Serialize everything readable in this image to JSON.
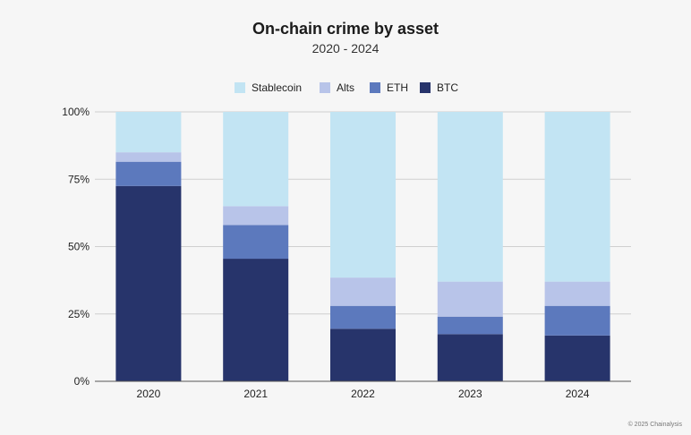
{
  "chart_data": {
    "type": "bar",
    "stacked": true,
    "title": "On-chain crime by asset",
    "subtitle": "2020 - 2024",
    "categories": [
      "2020",
      "2021",
      "2022",
      "2023",
      "2024"
    ],
    "series": [
      {
        "name": "BTC",
        "color": "#27346b",
        "values": [
          72.5,
          45.5,
          19.5,
          17.5,
          17
        ]
      },
      {
        "name": "ETH",
        "color": "#5c79bd",
        "values": [
          9,
          12.5,
          8.5,
          6.5,
          11
        ]
      },
      {
        "name": "Alts",
        "color": "#b8c4e9",
        "values": [
          3.5,
          7,
          10.5,
          13,
          9
        ]
      },
      {
        "name": "Stablecoin",
        "color": "#c2e4f3",
        "values": [
          15,
          35,
          61.5,
          63,
          63
        ]
      }
    ],
    "legend_order": [
      "Stablecoin",
      "Alts",
      "ETH",
      "BTC"
    ],
    "legend_position": "top-center",
    "ylim": [
      0,
      100
    ],
    "yticks": [
      0,
      25,
      50,
      75,
      100
    ],
    "ytick_labels": [
      "0%",
      "25%",
      "50%",
      "75%",
      "100%"
    ],
    "grid": true,
    "xlabel": "",
    "ylabel": ""
  },
  "footer": "© 2025 Chainalysis"
}
